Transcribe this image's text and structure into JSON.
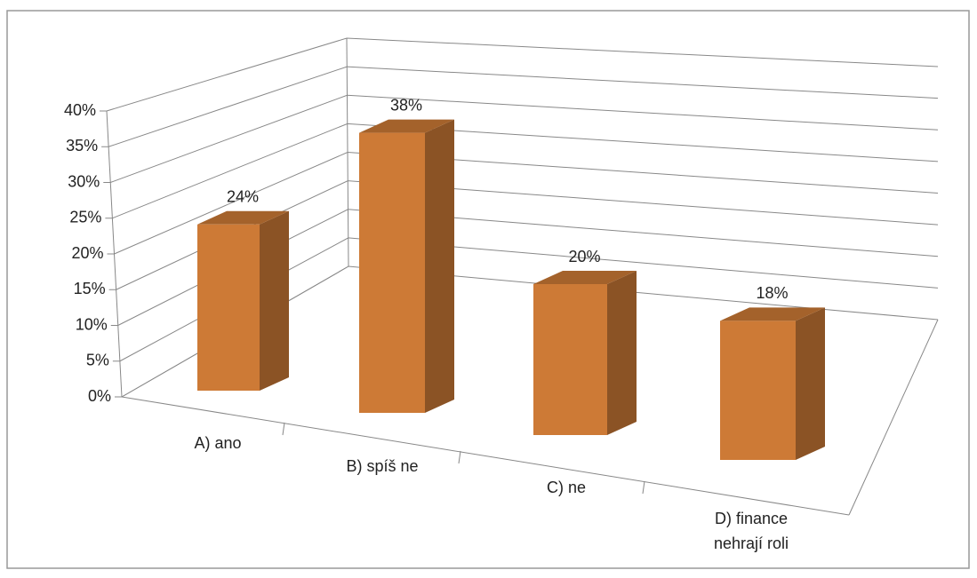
{
  "chart_data": {
    "type": "bar3d",
    "categories": [
      "A) ano",
      "B) spíš ne",
      "C) ne",
      "D) finance nehrají roli"
    ],
    "values": [
      24,
      38,
      20,
      18
    ],
    "value_labels": [
      "24%",
      "38%",
      "20%",
      "18%"
    ],
    "color": "#cd7a36",
    "ylim": [
      0,
      40
    ],
    "yticks": [
      {
        "value": 0,
        "label": "0%"
      },
      {
        "value": 5,
        "label": "5%"
      },
      {
        "value": 10,
        "label": "10%"
      },
      {
        "value": 15,
        "label": "15%"
      },
      {
        "value": 20,
        "label": "20%"
      },
      {
        "value": 25,
        "label": "25%"
      },
      {
        "value": 30,
        "label": "30%"
      },
      {
        "value": 35,
        "label": "35%"
      },
      {
        "value": 40,
        "label": "40%"
      }
    ],
    "grid": true
  }
}
